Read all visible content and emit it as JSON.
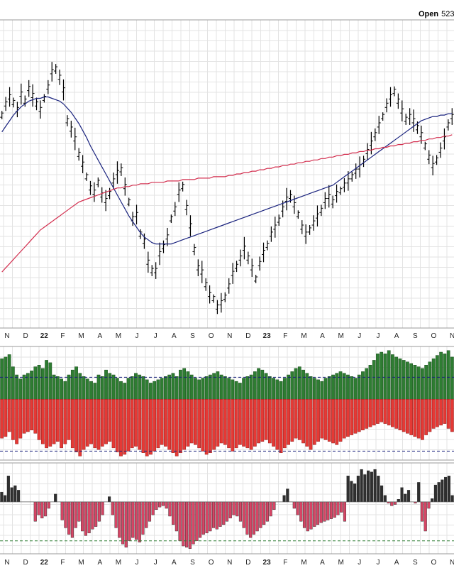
{
  "header": {
    "open_label": "Open",
    "open_value": "523"
  },
  "colors": {
    "price_bar": "#000000",
    "ma_short": "#1a237e",
    "ma_long": "#d32f4f",
    "breadth_positive": "#2e7d32",
    "breadth_negative": "#e53935",
    "net_positive": "#2f2f2f",
    "net_negative": "#d64565",
    "ref_line_blue": "#1a237e",
    "ref_line_green": "#2e7d32",
    "grid": "#e3e3e3",
    "border": "#000000"
  },
  "chart_data": [
    {
      "type": "ohlc",
      "panel": "price",
      "x_ticks": [
        "N",
        "D",
        "22",
        "F",
        "M",
        "A",
        "M",
        "J",
        "J",
        "A",
        "S",
        "O",
        "N",
        "D",
        "23",
        "F",
        "M",
        "A",
        "M",
        "J",
        "J",
        "A",
        "S",
        "O",
        "N"
      ],
      "series": [
        {
          "name": "",
          "kind": "bars",
          "values": [
            392,
            400,
            405,
            401,
            396,
            407,
            402,
            411,
            406,
            400,
            396,
            404,
            412,
            423,
            425,
            419,
            410,
            388,
            382,
            375,
            364,
            357,
            348,
            340,
            337,
            344,
            335,
            331,
            336,
            345,
            351,
            353,
            341,
            330,
            318,
            321,
            307,
            302,
            287,
            281,
            281,
            293,
            298,
            305,
            318,
            325,
            337,
            341,
            326,
            313,
            296,
            283,
            280,
            271,
            264,
            261,
            255,
            258,
            262,
            270,
            279,
            284,
            290,
            297,
            290,
            283,
            275,
            286,
            294,
            299,
            307,
            312,
            317,
            325,
            332,
            334,
            328,
            321,
            312,
            307,
            310,
            315,
            320,
            324,
            331,
            334,
            330,
            336,
            338,
            342,
            345,
            348,
            352,
            355,
            359,
            366,
            372,
            378,
            385,
            391,
            399,
            405,
            409,
            402,
            395,
            389,
            391,
            388,
            383,
            378,
            370,
            362,
            356,
            360,
            367,
            375,
            385,
            391
          ]
        },
        {
          "name": "",
          "kind": "line",
          "values": [
            380,
            384,
            388,
            392,
            395,
            398,
            400,
            402,
            403,
            404,
            404,
            405,
            405,
            404,
            403,
            402,
            400,
            397,
            394,
            390,
            386,
            381,
            376,
            370,
            365,
            360,
            355,
            350,
            345,
            340,
            335,
            330,
            325,
            320,
            316,
            312,
            308,
            305,
            303,
            301,
            300,
            300,
            300,
            300,
            300,
            301,
            302,
            303,
            304,
            305,
            306,
            307,
            308,
            309,
            310,
            311,
            312,
            313,
            314,
            315,
            316,
            317,
            318,
            319,
            320,
            321,
            322,
            323,
            324,
            325,
            326,
            327,
            328,
            329,
            330,
            331,
            332,
            333,
            334,
            335,
            336,
            337,
            338,
            339,
            340,
            341,
            342,
            344,
            346,
            348,
            350,
            352,
            354,
            356,
            358,
            360,
            362,
            364,
            366,
            368,
            370,
            372,
            374,
            376,
            378,
            380,
            382,
            384,
            386,
            388,
            389,
            390,
            391,
            391,
            392,
            392,
            393,
            393
          ]
        },
        {
          "name": "",
          "kind": "line",
          "values": [
            280,
            283,
            286,
            289,
            292,
            295,
            298,
            301,
            304,
            307,
            310,
            312,
            314,
            316,
            318,
            320,
            322,
            324,
            326,
            328,
            330,
            331,
            332,
            333,
            334,
            335,
            336,
            337,
            338,
            339,
            340,
            340,
            341,
            341,
            342,
            342,
            343,
            343,
            343,
            344,
            344,
            344,
            344,
            345,
            345,
            345,
            345,
            346,
            346,
            346,
            346,
            347,
            347,
            347,
            347,
            348,
            348,
            348,
            348,
            349,
            349,
            350,
            350,
            351,
            351,
            352,
            352,
            353,
            353,
            354,
            354,
            355,
            355,
            356,
            356,
            357,
            357,
            358,
            358,
            359,
            359,
            360,
            360,
            361,
            361,
            362,
            362,
            363,
            363,
            364,
            364,
            365,
            365,
            366,
            366,
            367,
            367,
            368,
            368,
            369,
            369,
            370,
            370,
            371,
            371,
            372,
            372,
            373,
            373,
            374,
            374,
            375,
            375,
            376,
            376,
            377,
            377,
            378
          ]
        }
      ],
      "ylim": [
        240,
        460
      ]
    },
    {
      "type": "bar",
      "panel": "breadth",
      "series": [
        {
          "name": "",
          "values": [
            50,
            52,
            55,
            40,
            30,
            25,
            30,
            32,
            35,
            40,
            42,
            38,
            48,
            45,
            30,
            28,
            25,
            22,
            30,
            36,
            40,
            32,
            28,
            25,
            22,
            20,
            30,
            28,
            36,
            32,
            30,
            26,
            22,
            20,
            26,
            28,
            32,
            30,
            28,
            24,
            20,
            22,
            24,
            26,
            28,
            30,
            32,
            28,
            36,
            38,
            34,
            30,
            26,
            24,
            26,
            28,
            30,
            32,
            34,
            30,
            28,
            26,
            24,
            22,
            20,
            26,
            28,
            30,
            34,
            38,
            36,
            32,
            28,
            26,
            24,
            22,
            26,
            30,
            34,
            38,
            40,
            36,
            32,
            28,
            26,
            24,
            22,
            26,
            28,
            30,
            32,
            34,
            32,
            30,
            28,
            26,
            30,
            34,
            38,
            42,
            48,
            56,
            58,
            56,
            60,
            55,
            52,
            50,
            48,
            46,
            44,
            42,
            40,
            38,
            42,
            46,
            50,
            54,
            58,
            56,
            60,
            52
          ]
        },
        {
          "name": "",
          "values": [
            -48,
            -46,
            -40,
            -50,
            -55,
            -48,
            -42,
            -40,
            -38,
            -42,
            -50,
            -55,
            -60,
            -58,
            -55,
            -52,
            -60,
            -55,
            -50,
            -60,
            -65,
            -70,
            -62,
            -58,
            -55,
            -60,
            -62,
            -58,
            -55,
            -52,
            -60,
            -65,
            -70,
            -68,
            -64,
            -60,
            -58,
            -62,
            -66,
            -70,
            -68,
            -64,
            -60,
            -56,
            -58,
            -62,
            -66,
            -70,
            -66,
            -62,
            -58,
            -54,
            -56,
            -60,
            -64,
            -68,
            -66,
            -62,
            -58,
            -54,
            -56,
            -60,
            -64,
            -60,
            -56,
            -58,
            -60,
            -62,
            -58,
            -54,
            -52,
            -50,
            -54,
            -58,
            -62,
            -66,
            -60,
            -56,
            -52,
            -48,
            -50,
            -54,
            -58,
            -62,
            -56,
            -52,
            -48,
            -50,
            -52,
            -54,
            -56,
            -52,
            -48,
            -46,
            -44,
            -42,
            -40,
            -38,
            -36,
            -34,
            -32,
            -30,
            -28,
            -30,
            -32,
            -34,
            -36,
            -38,
            -40,
            -42,
            -44,
            -46,
            -48,
            -50,
            -44,
            -40,
            -36,
            -34,
            -32,
            -30,
            -36,
            -40
          ]
        }
      ],
      "ref_lines": [
        27,
        -64
      ],
      "ylim": [
        -75,
        65
      ]
    },
    {
      "type": "bar",
      "panel": "net",
      "x_ticks": [
        "N",
        "D",
        "22",
        "F",
        "M",
        "A",
        "M",
        "J",
        "J",
        "A",
        "S",
        "O",
        "N",
        "D",
        "23",
        "F",
        "M",
        "A",
        "M",
        "J",
        "J",
        "A",
        "S",
        "O",
        "N"
      ],
      "values": [
        15,
        10,
        40,
        22,
        25,
        18,
        0,
        0,
        0,
        0,
        -30,
        -20,
        -25,
        -22,
        -10,
        0,
        12,
        0,
        -28,
        -40,
        -50,
        -55,
        -40,
        -30,
        -45,
        -52,
        -48,
        -42,
        -38,
        -30,
        -20,
        0,
        8,
        -20,
        -40,
        -55,
        -65,
        -70,
        -60,
        -55,
        -58,
        -62,
        -50,
        -40,
        -30,
        -20,
        -12,
        -8,
        -6,
        -10,
        -22,
        -35,
        -45,
        -60,
        -68,
        -70,
        -72,
        -65,
        -60,
        -55,
        -50,
        -48,
        -45,
        -40,
        -42,
        -38,
        -35,
        -30,
        -25,
        -20,
        -22,
        -30,
        -40,
        -50,
        -55,
        -50,
        -45,
        -40,
        -35,
        -30,
        -22,
        -12,
        0,
        0,
        10,
        20,
        0,
        -10,
        -20,
        -30,
        -40,
        -45,
        -42,
        -38,
        -35,
        -32,
        -30,
        -28,
        -26,
        -24,
        -20,
        -16,
        -30,
        40,
        32,
        28,
        40,
        50,
        42,
        48,
        46,
        50,
        40,
        25,
        10,
        -2,
        -6,
        -4,
        4,
        22,
        12,
        18,
        0,
        -2,
        30,
        -30,
        -45,
        -10,
        5,
        26,
        30,
        34,
        38,
        40,
        10
      ]
    }
  ]
}
